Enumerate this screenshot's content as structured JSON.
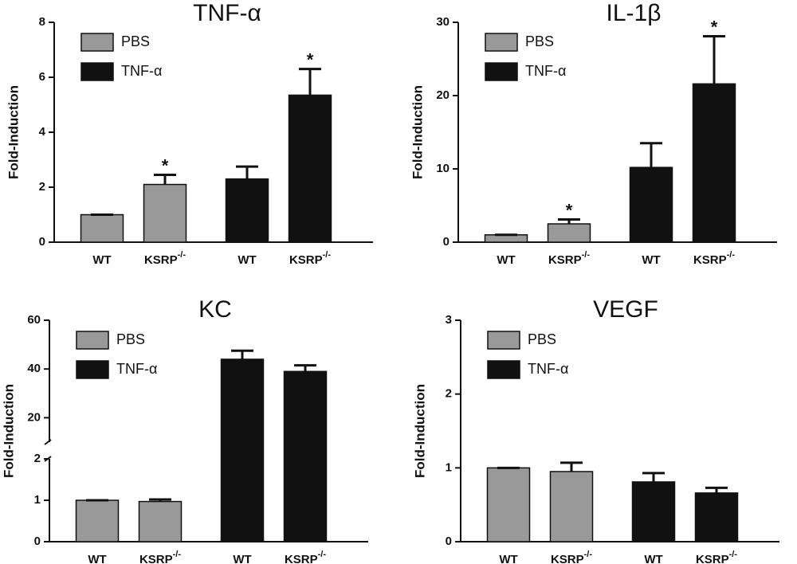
{
  "chart_data": [
    {
      "type": "bar",
      "title": "TNF-α",
      "ylabel": "Fold-Induction",
      "categories": [
        "WT",
        {
          "text": "KSRP",
          "sup": "-/-"
        },
        "WT",
        {
          "text": "KSRP",
          "sup": "-/-"
        }
      ],
      "series": [
        {
          "name": "PBS",
          "color": "#999999",
          "values": [
            1,
            2.1,
            null,
            null
          ],
          "errors": [
            0,
            0.35,
            null,
            null
          ]
        },
        {
          "name": "TNF-α",
          "color": "#111111",
          "values": [
            null,
            null,
            2.3,
            5.35
          ],
          "errors": [
            null,
            null,
            0.45,
            0.95
          ]
        }
      ],
      "significance": [
        null,
        "*",
        null,
        "*"
      ],
      "ylim": [
        0,
        8
      ],
      "yticks": [
        0,
        2,
        4,
        6,
        8
      ]
    },
    {
      "type": "bar",
      "title": "IL-1β",
      "ylabel": "Fold-Induction",
      "categories": [
        "WT",
        {
          "text": "KSRP",
          "sup": "-/-"
        },
        "WT",
        {
          "text": "KSRP",
          "sup": "-/-"
        }
      ],
      "series": [
        {
          "name": "PBS",
          "color": "#999999",
          "values": [
            1,
            2.5,
            null,
            null
          ],
          "errors": [
            0,
            0.6,
            null,
            null
          ]
        },
        {
          "name": "TNF-α",
          "color": "#111111",
          "values": [
            null,
            null,
            10.2,
            21.6
          ],
          "errors": [
            null,
            null,
            3.3,
            6.5
          ]
        }
      ],
      "significance": [
        null,
        "*",
        null,
        "*"
      ],
      "ylim": [
        0,
        30
      ],
      "yticks": [
        0,
        10,
        20,
        30
      ]
    },
    {
      "type": "bar",
      "title": "KC",
      "ylabel": "Fold-Induction",
      "categories": [
        "WT",
        {
          "text": "KSRP",
          "sup": "-/-"
        },
        "WT",
        {
          "text": "KSRP",
          "sup": "-/-"
        }
      ],
      "series": [
        {
          "name": "PBS",
          "color": "#999999",
          "values": [
            1,
            0.97,
            null,
            null
          ],
          "errors": [
            0,
            0.05,
            null,
            null
          ]
        },
        {
          "name": "TNF-α",
          "color": "#111111",
          "values": [
            null,
            null,
            44,
            39
          ],
          "errors": [
            null,
            null,
            3.5,
            2.5
          ]
        }
      ],
      "segments": [
        {
          "ylim": [
            0,
            2
          ],
          "yticks": [
            0,
            1,
            2
          ]
        },
        {
          "ylim": [
            10,
            60
          ],
          "yticks": [
            20,
            40,
            60
          ]
        }
      ]
    },
    {
      "type": "bar",
      "title": "VEGF",
      "ylabel": "Fold-Induction",
      "categories": [
        "WT",
        {
          "text": "KSRP",
          "sup": "-/-"
        },
        "WT",
        {
          "text": "KSRP",
          "sup": "-/-"
        }
      ],
      "series": [
        {
          "name": "PBS",
          "color": "#999999",
          "values": [
            1,
            0.95,
            null,
            null
          ],
          "errors": [
            0,
            0.12,
            null,
            null
          ]
        },
        {
          "name": "TNF-α",
          "color": "#111111",
          "values": [
            null,
            null,
            0.81,
            0.66
          ],
          "errors": [
            null,
            null,
            0.12,
            0.07
          ]
        }
      ],
      "ylim": [
        0,
        3
      ],
      "yticks": [
        0,
        1,
        2,
        3
      ]
    }
  ]
}
